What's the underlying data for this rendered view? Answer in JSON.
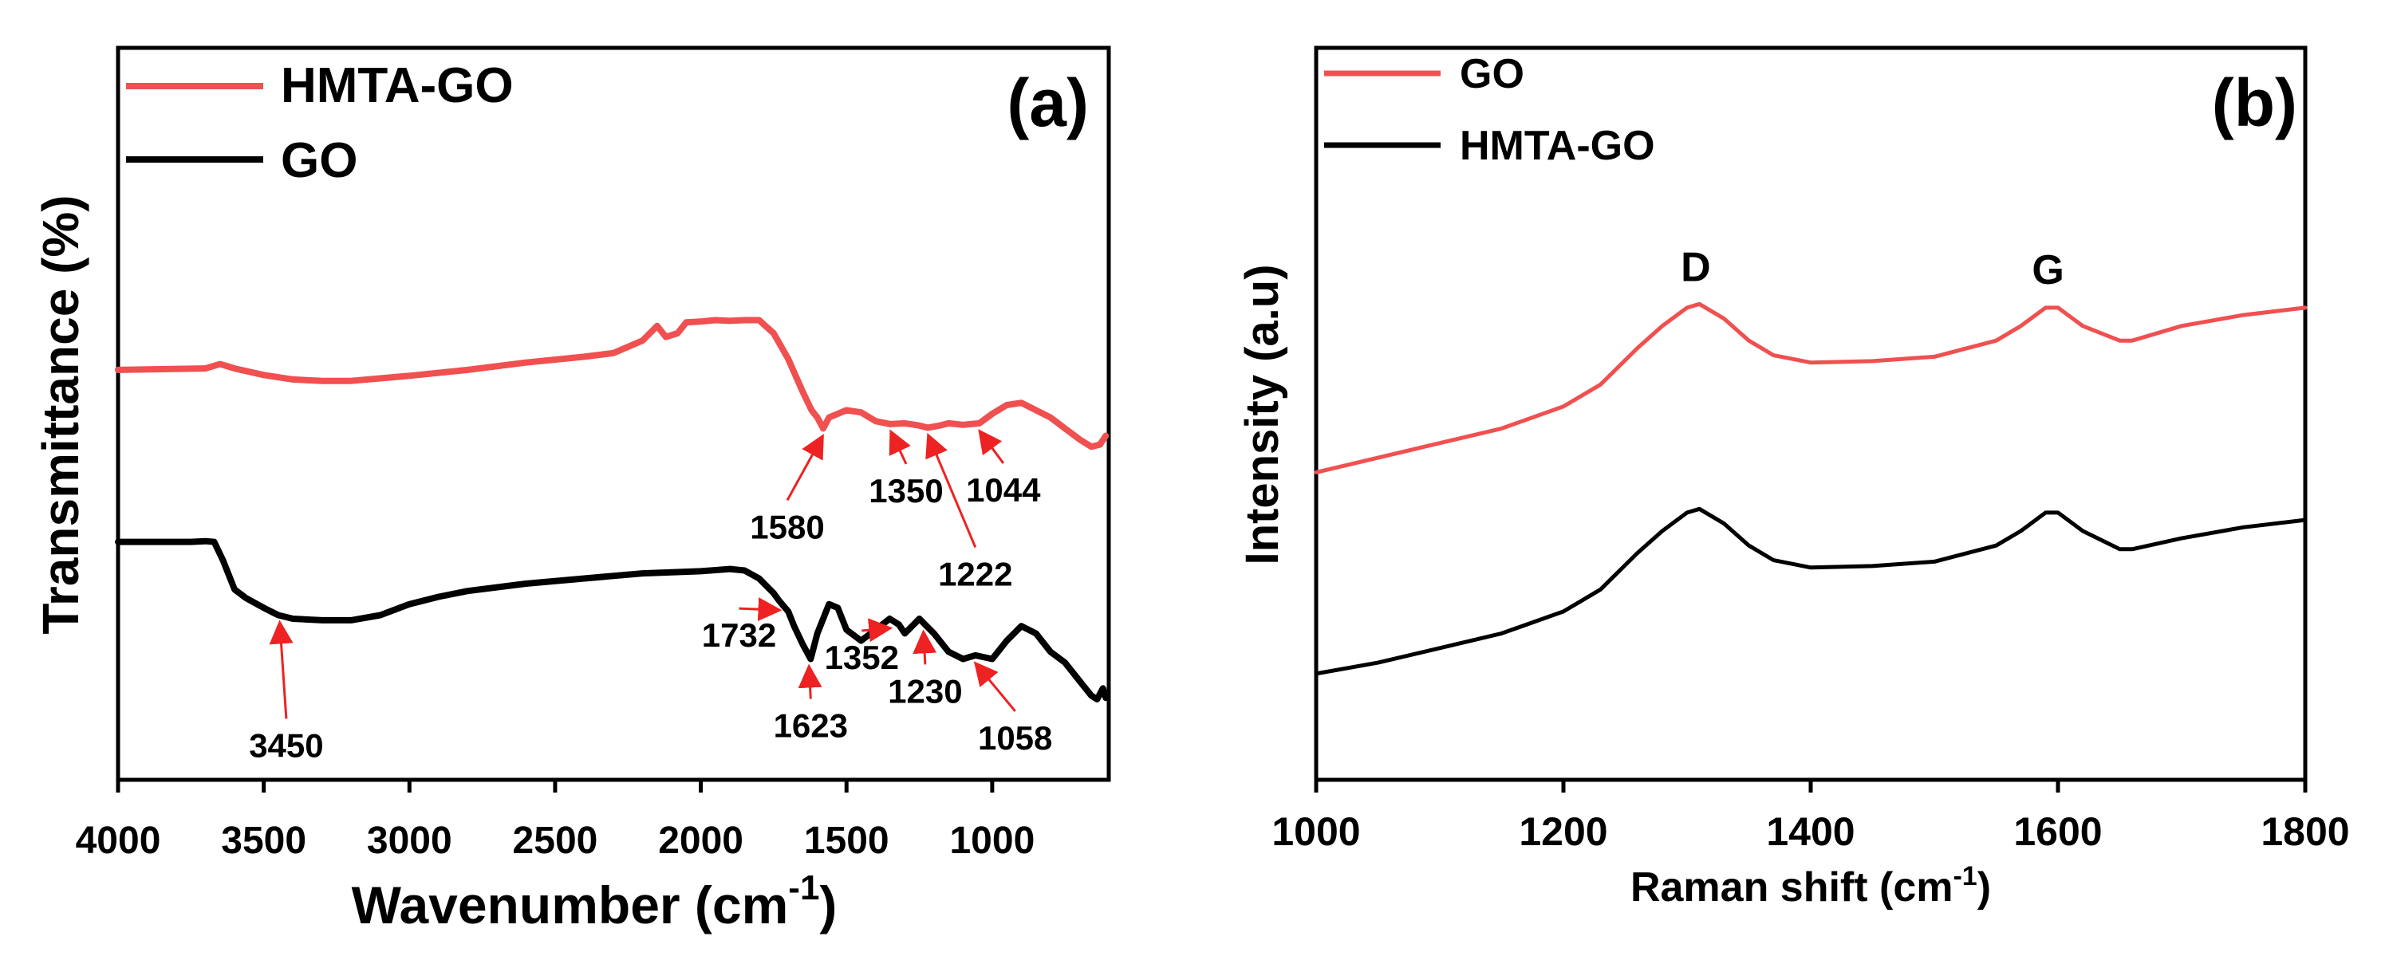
{
  "colors": {
    "red": "#f05050",
    "black": "#000000",
    "arrow": "#ee2222"
  },
  "chart_data": [
    {
      "type": "line",
      "panel_label": "(a)",
      "xlabel": "Wavenumber (cm",
      "xlabel_sup": "-1",
      "xlabel_close": ")",
      "ylabel": "Transmittance (%)",
      "xlim": [
        4000,
        600
      ],
      "ylim": [
        0,
        1
      ],
      "x_ticks": [
        4000,
        3500,
        3000,
        2500,
        2000,
        1500,
        1000
      ],
      "x_tick_labels": [
        "4000",
        "3500",
        "3000",
        "2500",
        "2000",
        "1500",
        "1000"
      ],
      "legend": [
        "HMTA-GO",
        "GO"
      ],
      "series": [
        {
          "name": "HMTA-GO",
          "color": "#f05050",
          "x": [
            4000,
            3700,
            3650,
            3600,
            3500,
            3400,
            3300,
            3200,
            3000,
            2800,
            2600,
            2400,
            2300,
            2200,
            2150,
            2120,
            2080,
            2050,
            2000,
            1950,
            1900,
            1850,
            1800,
            1750,
            1700,
            1650,
            1620,
            1600,
            1580,
            1560,
            1500,
            1450,
            1400,
            1350,
            1300,
            1250,
            1222,
            1180,
            1150,
            1100,
            1044,
            1000,
            950,
            900,
            850,
            800,
            750,
            700,
            660,
            630,
            610
          ],
          "values": [
            0.56,
            0.562,
            0.568,
            0.562,
            0.553,
            0.547,
            0.545,
            0.545,
            0.552,
            0.56,
            0.57,
            0.578,
            0.583,
            0.6,
            0.62,
            0.605,
            0.61,
            0.625,
            0.626,
            0.628,
            0.627,
            0.628,
            0.628,
            0.61,
            0.575,
            0.53,
            0.505,
            0.495,
            0.48,
            0.495,
            0.505,
            0.502,
            0.49,
            0.486,
            0.487,
            0.484,
            0.481,
            0.484,
            0.487,
            0.485,
            0.487,
            0.5,
            0.512,
            0.515,
            0.505,
            0.495,
            0.48,
            0.465,
            0.455,
            0.458,
            0.47
          ]
        },
        {
          "name": "GO",
          "color": "#000000",
          "x": [
            4000,
            3750,
            3700,
            3670,
            3640,
            3600,
            3560,
            3500,
            3450,
            3400,
            3300,
            3200,
            3100,
            3000,
            2900,
            2800,
            2600,
            2400,
            2200,
            2000,
            1900,
            1850,
            1800,
            1750,
            1732,
            1700,
            1680,
            1650,
            1623,
            1600,
            1560,
            1530,
            1500,
            1450,
            1400,
            1352,
            1320,
            1300,
            1250,
            1230,
            1200,
            1150,
            1100,
            1058,
            1000,
            950,
            900,
            850,
            800,
            750,
            700,
            660,
            640,
            620,
            610
          ],
          "values": [
            0.325,
            0.325,
            0.326,
            0.325,
            0.3,
            0.26,
            0.248,
            0.235,
            0.225,
            0.22,
            0.218,
            0.218,
            0.225,
            0.24,
            0.25,
            0.258,
            0.268,
            0.275,
            0.282,
            0.285,
            0.288,
            0.286,
            0.275,
            0.255,
            0.245,
            0.23,
            0.21,
            0.185,
            0.165,
            0.2,
            0.24,
            0.235,
            0.205,
            0.19,
            0.205,
            0.22,
            0.212,
            0.2,
            0.22,
            0.212,
            0.2,
            0.175,
            0.165,
            0.17,
            0.165,
            0.19,
            0.21,
            0.2,
            0.175,
            0.16,
            0.135,
            0.115,
            0.11,
            0.125,
            0.112
          ]
        }
      ],
      "annotations": [
        {
          "label": "1580",
          "x": 1580,
          "series": "HMTA-GO"
        },
        {
          "label": "1350",
          "x": 1350,
          "series": "HMTA-GO"
        },
        {
          "label": "1222",
          "x": 1222,
          "series": "HMTA-GO"
        },
        {
          "label": "1044",
          "x": 1044,
          "series": "HMTA-GO"
        },
        {
          "label": "3450",
          "x": 3450,
          "series": "GO"
        },
        {
          "label": "1732",
          "x": 1732,
          "series": "GO"
        },
        {
          "label": "1623",
          "x": 1623,
          "series": "GO"
        },
        {
          "label": "1352",
          "x": 1352,
          "series": "GO"
        },
        {
          "label": "1230",
          "x": 1230,
          "series": "GO"
        },
        {
          "label": "1058",
          "x": 1058,
          "series": "GO"
        }
      ]
    },
    {
      "type": "line",
      "panel_label": "(b)",
      "xlabel": "Raman shift (cm",
      "xlabel_sup": "-1",
      "xlabel_close": ")",
      "ylabel": "Intensity (a.u)",
      "xlim": [
        1000,
        1800
      ],
      "ylim": [
        0,
        1
      ],
      "x_ticks": [
        1000,
        1200,
        1400,
        1600,
        1800
      ],
      "x_tick_labels": [
        "1000",
        "1200",
        "1400",
        "1600",
        "1800"
      ],
      "legend": [
        "GO",
        "HMTA-GO"
      ],
      "series": [
        {
          "name": "GO",
          "color": "#f05050",
          "x": [
            1000,
            1050,
            1100,
            1150,
            1200,
            1230,
            1260,
            1280,
            1300,
            1310,
            1330,
            1350,
            1370,
            1400,
            1450,
            1500,
            1550,
            1570,
            1590,
            1600,
            1620,
            1650,
            1660,
            1700,
            1750,
            1800
          ],
          "values": [
            0.42,
            0.44,
            0.46,
            0.48,
            0.51,
            0.54,
            0.59,
            0.62,
            0.645,
            0.65,
            0.63,
            0.6,
            0.58,
            0.57,
            0.572,
            0.578,
            0.6,
            0.62,
            0.645,
            0.645,
            0.62,
            0.6,
            0.6,
            0.62,
            0.635,
            0.645
          ]
        },
        {
          "name": "HMTA-GO",
          "color": "#000000",
          "x": [
            1000,
            1050,
            1100,
            1150,
            1200,
            1230,
            1260,
            1280,
            1300,
            1310,
            1330,
            1350,
            1370,
            1400,
            1450,
            1500,
            1550,
            1570,
            1590,
            1600,
            1620,
            1650,
            1660,
            1700,
            1750,
            1800
          ],
          "values": [
            0.145,
            0.16,
            0.18,
            0.2,
            0.23,
            0.26,
            0.31,
            0.34,
            0.365,
            0.37,
            0.35,
            0.32,
            0.3,
            0.29,
            0.292,
            0.298,
            0.32,
            0.34,
            0.365,
            0.365,
            0.34,
            0.315,
            0.315,
            0.33,
            0.345,
            0.355
          ]
        }
      ],
      "annotations": [
        {
          "label": "D",
          "x": 1307
        },
        {
          "label": "G",
          "x": 1592
        }
      ]
    }
  ]
}
